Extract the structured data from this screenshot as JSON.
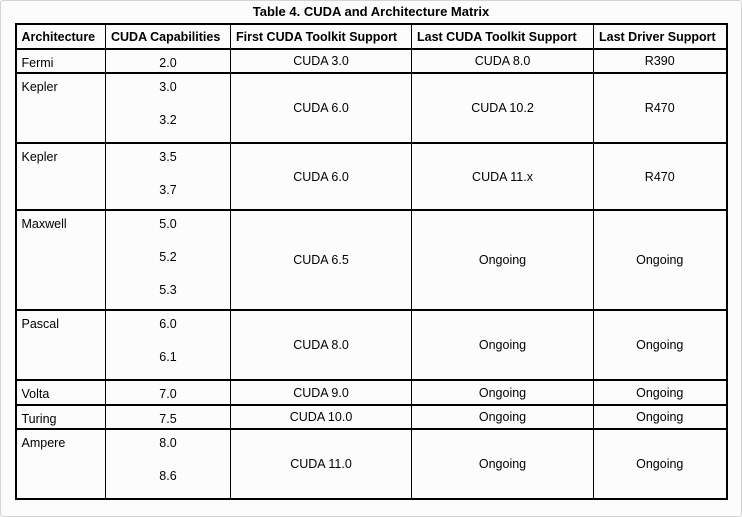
{
  "title": "Table 4. CUDA and Architecture Matrix",
  "table": {
    "columns": [
      "Architecture",
      "CUDA Capabilities",
      "First CUDA Toolkit Support",
      "Last CUDA Toolkit Support",
      "Last Driver Support"
    ],
    "rows": [
      {
        "architecture": "Fermi",
        "capabilities": [
          "2.0"
        ],
        "first_toolkit": "CUDA 3.0",
        "last_toolkit": "CUDA 8.0",
        "last_driver": "R390"
      },
      {
        "architecture": "Kepler",
        "capabilities": [
          "3.0",
          "3.2"
        ],
        "first_toolkit": "CUDA 6.0",
        "last_toolkit": "CUDA 10.2",
        "last_driver": "R470"
      },
      {
        "architecture": "Kepler",
        "capabilities": [
          "3.5",
          "3.7"
        ],
        "first_toolkit": "CUDA 6.0",
        "last_toolkit": "CUDA 11.x",
        "last_driver": "R470"
      },
      {
        "architecture": "Maxwell",
        "capabilities": [
          "5.0",
          "5.2",
          "5.3"
        ],
        "first_toolkit": "CUDA 6.5",
        "last_toolkit": "Ongoing",
        "last_driver": "Ongoing"
      },
      {
        "architecture": "Pascal",
        "capabilities": [
          "6.0",
          "6.1"
        ],
        "first_toolkit": "CUDA 8.0",
        "last_toolkit": "Ongoing",
        "last_driver": "Ongoing"
      },
      {
        "architecture": "Volta",
        "capabilities": [
          "7.0"
        ],
        "first_toolkit": "CUDA 9.0",
        "last_toolkit": "Ongoing",
        "last_driver": "Ongoing"
      },
      {
        "architecture": "Turing",
        "capabilities": [
          "7.5"
        ],
        "first_toolkit": "CUDA 10.0",
        "last_toolkit": "Ongoing",
        "last_driver": "Ongoing"
      },
      {
        "architecture": "Ampere",
        "capabilities": [
          "8.0",
          "8.6"
        ],
        "first_toolkit": "CUDA 11.0",
        "last_toolkit": "Ongoing",
        "last_driver": "Ongoing"
      }
    ]
  },
  "colors": {
    "table_border": "#000000",
    "text": "#000000",
    "page_background": "#fcfcfc"
  }
}
